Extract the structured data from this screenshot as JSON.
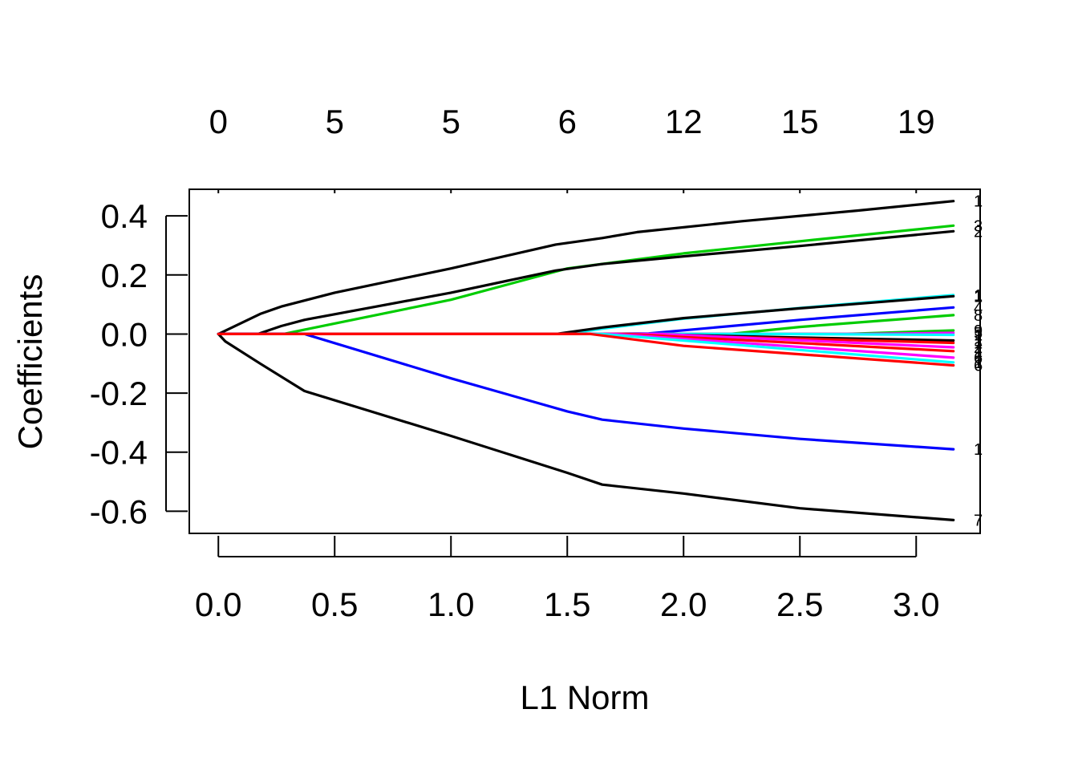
{
  "chart_data": {
    "type": "line",
    "xlabel": "L1 Norm",
    "ylabel": "Coefficients",
    "xlim": [
      -0.125,
      3.275
    ],
    "ylim": [
      -0.675,
      0.49
    ],
    "x_ticks": [
      "0.0",
      "0.5",
      "1.0",
      "1.5",
      "2.0",
      "2.5",
      "3.0"
    ],
    "x_tick_values": [
      0,
      0.5,
      1.0,
      1.5,
      2.0,
      2.5,
      3.0
    ],
    "y_ticks": [
      "0.4",
      "0.2",
      "0.0",
      "-0.2",
      "-0.4",
      "-0.6"
    ],
    "y_tick_values": [
      0.4,
      0.2,
      0.0,
      -0.2,
      -0.4,
      -0.6
    ],
    "top_axis": {
      "labels": [
        "0",
        "5",
        "5",
        "6",
        "12",
        "15",
        "19"
      ],
      "values": [
        0,
        0.5,
        1.0,
        1.5,
        2.0,
        2.5,
        3.0
      ]
    },
    "grid": false,
    "series": [
      {
        "end_label": "1",
        "color": "#000000",
        "x": [
          0,
          0.18,
          0.27,
          0.5,
          1.0,
          1.45,
          1.65,
          1.8,
          2.25,
          2.75,
          3.16
        ],
        "y": [
          0,
          0.068,
          0.093,
          0.14,
          0.222,
          0.303,
          0.325,
          0.345,
          0.382,
          0.418,
          0.45
        ]
      },
      {
        "end_label": "3",
        "color": "#00cc00",
        "x": [
          0,
          0.28,
          1.0,
          1.5,
          2.0,
          2.5,
          3.16
        ],
        "y": [
          0,
          0,
          0.116,
          0.222,
          0.273,
          0.314,
          0.367
        ]
      },
      {
        "end_label": "2",
        "color": "#000000",
        "x": [
          0,
          0.17,
          0.27,
          0.37,
          1.0,
          1.45,
          1.65,
          2.0,
          2.5,
          3.16
        ],
        "y": [
          0,
          0,
          0.027,
          0.048,
          0.14,
          0.215,
          0.237,
          0.263,
          0.298,
          0.348
        ]
      },
      {
        "end_label": "1",
        "color": "#00ffff",
        "x": [
          0,
          1.5,
          1.65,
          2.0,
          2.5,
          3.16
        ],
        "y": [
          0,
          0,
          0.018,
          0.052,
          0.088,
          0.132
        ]
      },
      {
        "end_label": "1",
        "color": "#000000",
        "x": [
          0,
          1.45,
          1.65,
          2.0,
          2.5,
          3.16
        ],
        "y": [
          0,
          0,
          0.022,
          0.054,
          0.087,
          0.128
        ]
      },
      {
        "end_label": "4",
        "color": "#0000ff",
        "x": [
          0,
          1.65,
          1.85,
          2.5,
          3.16
        ],
        "y": [
          0,
          0,
          0.002,
          0.048,
          0.09
        ]
      },
      {
        "end_label": "8",
        "color": "#00cc00",
        "x": [
          0,
          2.2,
          2.5,
          3.16
        ],
        "y": [
          0,
          0,
          0.024,
          0.064
        ]
      },
      {
        "end_label": "9",
        "color": "#00cc00",
        "x": [
          0,
          2.7,
          3.16
        ],
        "y": [
          0,
          0,
          0.012
        ]
      },
      {
        "end_label": "5",
        "color": "#ff00ff",
        "x": [
          0,
          2.8,
          3.16
        ],
        "y": [
          0,
          0,
          0.004
        ]
      },
      {
        "end_label": "1",
        "color": "#00ffff",
        "x": [
          0,
          2.4,
          3.16
        ],
        "y": [
          0,
          0,
          -0.003
        ]
      },
      {
        "end_label": "1",
        "color": "#000000",
        "x": [
          0,
          1.8,
          2.5,
          3.16
        ],
        "y": [
          0,
          0,
          -0.012,
          -0.022
        ]
      },
      {
        "end_label": "1",
        "color": "#ff0000",
        "x": [
          0,
          1.7,
          2.5,
          3.16
        ],
        "y": [
          0,
          0,
          -0.016,
          -0.03
        ]
      },
      {
        "end_label": "2",
        "color": "#ff00ff",
        "x": [
          0,
          1.9,
          3.16
        ],
        "y": [
          0,
          0,
          -0.045
        ]
      },
      {
        "end_label": "1",
        "color": "#ff0000",
        "x": [
          0,
          1.75,
          3.16
        ],
        "y": [
          0,
          0,
          -0.058
        ]
      },
      {
        "end_label": "6",
        "color": "#ff00ff",
        "x": [
          0,
          1.7,
          3.16
        ],
        "y": [
          0,
          0,
          -0.08
        ]
      },
      {
        "end_label": "1",
        "color": "#00ffff",
        "x": [
          0,
          1.65,
          3.16
        ],
        "y": [
          0,
          0,
          -0.096
        ]
      },
      {
        "end_label": "6",
        "color": "#ff0000",
        "x": [
          0,
          1.6,
          2.0,
          3.16
        ],
        "y": [
          0,
          0,
          -0.04,
          -0.106
        ]
      },
      {
        "end_label": "1",
        "color": "#0000ff",
        "x": [
          0,
          0.37,
          1.0,
          1.5,
          1.65,
          2.0,
          2.5,
          3.16
        ],
        "y": [
          0,
          0,
          -0.15,
          -0.262,
          -0.29,
          -0.32,
          -0.355,
          -0.39
        ]
      },
      {
        "end_label": "7",
        "color": "#000000",
        "x": [
          0,
          0.03,
          0.18,
          0.37,
          1.0,
          1.5,
          1.65,
          2.0,
          2.5,
          3.16
        ],
        "y": [
          0,
          -0.025,
          -0.1,
          -0.193,
          -0.345,
          -0.47,
          -0.51,
          -0.54,
          -0.59,
          -0.63
        ]
      },
      {
        "end_label": "",
        "color": "#ff0000",
        "x": [
          0,
          1.6
        ],
        "y": [
          0,
          0
        ]
      }
    ]
  }
}
